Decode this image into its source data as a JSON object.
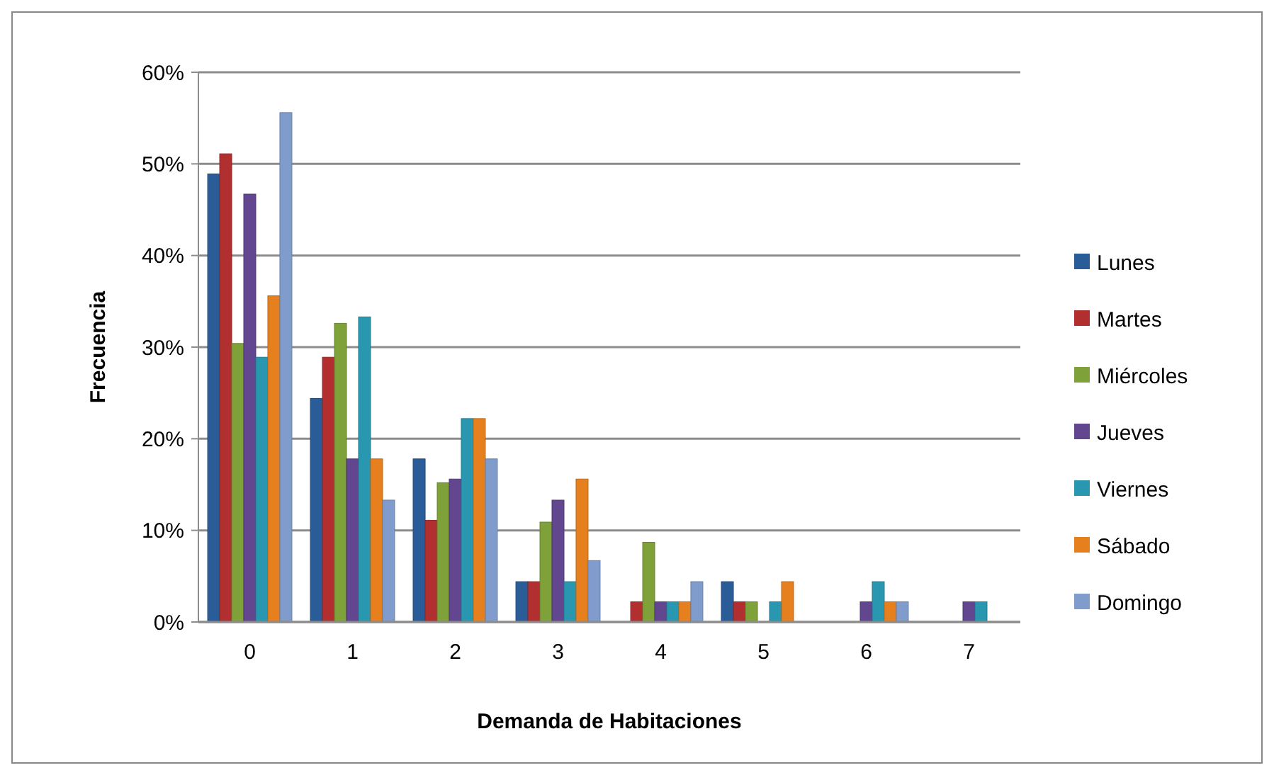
{
  "chart_data": {
    "type": "bar",
    "xlabel": "Demanda de Habitaciones",
    "ylabel": "Frecuencia",
    "categories": [
      "0",
      "1",
      "2",
      "3",
      "4",
      "5",
      "6",
      "7"
    ],
    "series": [
      {
        "name": "Lunes",
        "color": "#2a5c98",
        "values": [
          48.9,
          24.4,
          17.8,
          4.4,
          0,
          4.4,
          0,
          0
        ]
      },
      {
        "name": "Martes",
        "color": "#b22f2f",
        "values": [
          51.1,
          28.9,
          11.1,
          4.4,
          2.2,
          2.2,
          0,
          0
        ]
      },
      {
        "name": "Miércoles",
        "color": "#7ea13a",
        "values": [
          30.4,
          32.6,
          15.2,
          10.9,
          8.7,
          2.2,
          0,
          0
        ]
      },
      {
        "name": "Jueves",
        "color": "#62468f",
        "values": [
          46.7,
          17.8,
          15.6,
          13.3,
          2.2,
          0,
          2.2,
          2.2
        ]
      },
      {
        "name": "Viernes",
        "color": "#2a97b0",
        "values": [
          28.9,
          33.3,
          22.2,
          4.4,
          2.2,
          2.2,
          4.4,
          2.2
        ]
      },
      {
        "name": "Sábado",
        "color": "#e6801f",
        "values": [
          35.6,
          17.8,
          22.2,
          15.6,
          2.2,
          4.4,
          2.2,
          0
        ]
      },
      {
        "name": "Domingo",
        "color": "#7f9ccc",
        "values": [
          55.6,
          13.3,
          17.8,
          6.7,
          4.4,
          0,
          2.2,
          0
        ]
      }
    ],
    "ylim": [
      0,
      60
    ],
    "yticks": [
      {
        "value": 0,
        "label": "0%"
      },
      {
        "value": 10,
        "label": "10%"
      },
      {
        "value": 20,
        "label": "20%"
      },
      {
        "value": 30,
        "label": "30%"
      },
      {
        "value": 40,
        "label": "40%"
      },
      {
        "value": 50,
        "label": "50%"
      },
      {
        "value": 60,
        "label": "60%"
      }
    ],
    "grid": "y",
    "legend": "right"
  }
}
